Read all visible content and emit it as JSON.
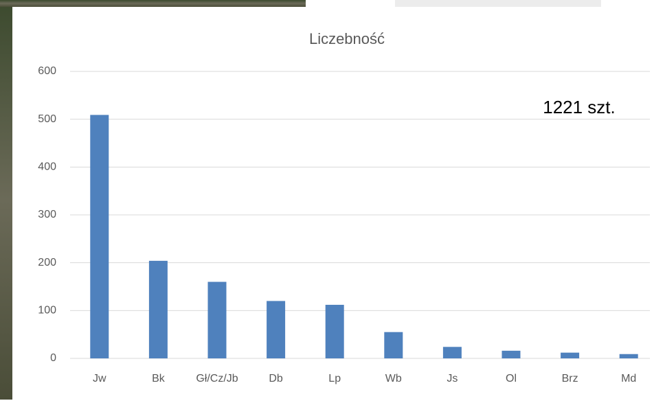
{
  "chart_data": {
    "type": "bar",
    "title": "Liczebność",
    "annotation": "1221 szt.",
    "categories": [
      "Jw",
      "Bk",
      "Gł/Cz/Jb",
      "Db",
      "Lp",
      "Wb",
      "Js",
      "Ol",
      "Brz",
      "Md"
    ],
    "values": [
      509,
      204,
      160,
      120,
      112,
      55,
      24,
      16,
      12,
      9
    ],
    "color": "#4f81bd",
    "ylim": [
      0,
      600
    ],
    "yticks": [
      0,
      100,
      200,
      300,
      400,
      500,
      600
    ],
    "grid": true
  }
}
